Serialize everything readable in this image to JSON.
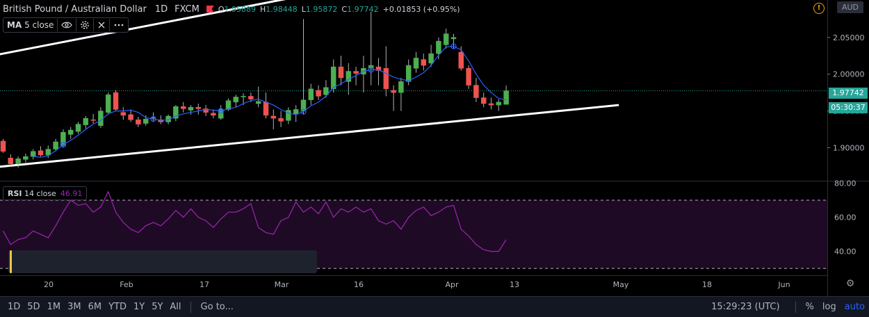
{
  "header": {
    "symbol": "British Pound / Australian Dollar",
    "timeframe": "1D",
    "source": "FXCM",
    "ohlc": {
      "o_label": "O",
      "o": "1.95889",
      "h_label": "H",
      "h": "1.98448",
      "l_label": "L",
      "l": "1.95872",
      "c_label": "C",
      "c": "1.97742",
      "change": "+0.01853 (+0.95%)"
    },
    "currency": "AUD",
    "warning_icon": "!"
  },
  "indicators": {
    "ma": {
      "name": "MA",
      "params": "5 close",
      "icons": [
        "eye-icon",
        "gear-icon",
        "close-icon",
        "more-icon"
      ]
    },
    "rsi": {
      "name": "RSI",
      "params": "14 close",
      "value": "46.91"
    }
  },
  "price_labels": {
    "last": "1.97742",
    "countdown": "05:30:37"
  },
  "bottom_toolbar": {
    "timeframes": [
      "1D",
      "5D",
      "1M",
      "3M",
      "6M",
      "YTD",
      "1Y",
      "5Y",
      "All"
    ],
    "goto": "Go to...",
    "clock": "15:29:23 (UTC)",
    "percent": "%",
    "log": "log",
    "auto": "auto"
  },
  "colors": {
    "up": "#26a69a",
    "up_fill": "#4caf50",
    "down": "#ef5350",
    "ma": "#2962ff",
    "rsi": "#9c27b0",
    "rsi_band": "#1e0a24",
    "trendline": "#ffffff",
    "background": "#000000"
  },
  "chart_data": [
    {
      "type": "candlestick",
      "x_ticks": [
        "20",
        "Feb",
        "17",
        "Mar",
        "16",
        "Apr",
        "13",
        "May",
        "18",
        "Jun"
      ],
      "y_ticks": [
        "1.90000",
        "1.95000",
        "2.00000",
        "2.05000"
      ],
      "ylim": [
        1.855,
        2.1
      ],
      "last_price": 1.97742,
      "candles": [
        [
          1.909,
          1.912,
          1.893,
          1.895
        ],
        [
          1.886,
          1.891,
          1.874,
          1.878
        ],
        [
          1.878,
          1.888,
          1.873,
          1.885
        ],
        [
          1.884,
          1.892,
          1.88,
          1.888
        ],
        [
          1.888,
          1.898,
          1.884,
          1.895
        ],
        [
          1.896,
          1.902,
          1.888,
          1.89
        ],
        [
          1.89,
          1.903,
          1.886,
          1.898
        ],
        [
          1.898,
          1.912,
          1.895,
          1.908
        ],
        [
          1.903,
          1.925,
          1.9,
          1.921
        ],
        [
          1.918,
          1.928,
          1.912,
          1.924
        ],
        [
          1.922,
          1.935,
          1.919,
          1.932
        ],
        [
          1.931,
          1.943,
          1.926,
          1.94
        ],
        [
          1.938,
          1.946,
          1.933,
          1.937
        ],
        [
          1.93,
          1.955,
          1.927,
          1.95
        ],
        [
          1.948,
          1.975,
          1.945,
          1.972
        ],
        [
          1.975,
          1.978,
          1.95,
          1.952
        ],
        [
          1.948,
          1.955,
          1.938,
          1.944
        ],
        [
          1.945,
          1.952,
          1.935,
          1.938
        ],
        [
          1.938,
          1.942,
          1.928,
          1.932
        ],
        [
          1.933,
          1.944,
          1.93,
          1.939
        ],
        [
          1.94,
          1.948,
          1.935,
          1.941
        ],
        [
          1.938,
          1.944,
          1.932,
          1.935
        ],
        [
          1.935,
          1.945,
          1.932,
          1.943
        ],
        [
          1.94,
          1.958,
          1.936,
          1.956
        ],
        [
          1.956,
          1.962,
          1.948,
          1.953
        ],
        [
          1.951,
          1.958,
          1.945,
          1.955
        ],
        [
          1.955,
          1.96,
          1.945,
          1.953
        ],
        [
          1.953,
          1.958,
          1.943,
          1.948
        ],
        [
          1.947,
          1.952,
          1.94,
          1.944
        ],
        [
          1.94,
          1.958,
          1.938,
          1.952
        ],
        [
          1.952,
          1.967,
          1.95,
          1.964
        ],
        [
          1.962,
          1.972,
          1.955,
          1.969
        ],
        [
          1.969,
          1.974,
          1.958,
          1.97
        ],
        [
          1.97,
          1.975,
          1.962,
          1.966
        ],
        [
          1.96,
          1.983,
          1.955,
          1.963
        ],
        [
          1.962,
          1.975,
          1.94,
          1.944
        ],
        [
          1.943,
          1.952,
          1.925,
          1.94
        ],
        [
          1.94,
          1.95,
          1.928,
          1.936
        ],
        [
          1.937,
          1.955,
          1.932,
          1.951
        ],
        [
          1.946,
          1.958,
          1.935,
          1.952
        ],
        [
          1.95,
          2.075,
          1.945,
          1.965
        ],
        [
          1.965,
          1.987,
          1.958,
          1.98
        ],
        [
          1.978,
          1.985,
          1.965,
          1.97
        ],
        [
          1.972,
          1.992,
          1.968,
          1.982
        ],
        [
          1.98,
          2.02,
          1.975,
          2.01
        ],
        [
          2.01,
          2.025,
          1.985,
          1.995
        ],
        [
          1.99,
          2.015,
          1.972,
          2.004
        ],
        [
          2.004,
          2.01,
          1.985,
          2.001
        ],
        [
          2.0,
          2.025,
          1.975,
          2.008
        ],
        [
          2.008,
          2.085,
          1.985,
          2.012
        ],
        [
          2.01,
          2.022,
          1.985,
          2.005
        ],
        [
          2.008,
          2.038,
          1.97,
          1.98
        ],
        [
          1.978,
          1.985,
          1.95,
          1.975
        ],
        [
          1.975,
          1.995,
          1.95,
          1.99
        ],
        [
          1.99,
          2.02,
          1.985,
          2.012
        ],
        [
          2.008,
          2.03,
          2.002,
          2.022
        ],
        [
          2.02,
          2.028,
          2.005,
          2.012
        ],
        [
          2.015,
          2.04,
          2.01,
          2.028
        ],
        [
          2.028,
          2.05,
          2.02,
          2.045
        ],
        [
          2.04,
          2.062,
          2.035,
          2.055
        ],
        [
          2.048,
          2.055,
          2.035,
          2.05
        ],
        [
          2.03,
          2.038,
          2.005,
          2.008
        ],
        [
          2.008,
          2.012,
          1.98,
          1.985
        ],
        [
          1.985,
          1.995,
          1.962,
          1.968
        ],
        [
          1.968,
          1.975,
          1.955,
          1.96
        ],
        [
          1.96,
          1.968,
          1.952,
          1.958
        ],
        [
          1.958,
          1.966,
          1.95,
          1.962
        ],
        [
          1.95889,
          1.98448,
          1.95872,
          1.97742
        ]
      ],
      "ma_5_close": [
        null,
        null,
        null,
        null,
        1.888,
        1.887,
        1.889,
        1.896,
        1.904,
        1.91,
        1.917,
        1.925,
        1.932,
        1.937,
        1.946,
        1.95,
        1.95,
        1.951,
        1.948,
        1.941,
        1.939,
        1.937,
        1.938,
        1.943,
        1.946,
        1.948,
        1.95,
        1.952,
        1.951,
        1.95,
        1.953,
        1.955,
        1.96,
        1.964,
        1.966,
        1.962,
        1.958,
        1.952,
        1.947,
        1.945,
        1.949,
        1.957,
        1.962,
        1.97,
        1.982,
        1.987,
        1.993,
        1.998,
        2.004,
        2.006,
        2.006,
        2.001,
        1.996,
        1.993,
        1.991,
        1.996,
        2.002,
        2.012,
        2.026,
        2.037,
        2.038,
        2.033,
        2.018,
        2.0,
        1.985,
        1.975,
        1.967,
        1.965
      ],
      "trendlines": [
        {
          "name": "upper",
          "from": [
            -1.5,
            2.025
          ],
          "to": [
            38.0,
            2.103
          ]
        },
        {
          "name": "lower",
          "from": [
            -1.5,
            1.873
          ],
          "to": [
            82.0,
            1.958
          ]
        }
      ]
    },
    {
      "type": "line",
      "title": "RSI 14 close",
      "y_ticks": [
        "40.00",
        "60.00",
        "80.00"
      ],
      "ylim": [
        26,
        81
      ],
      "bands": [
        30,
        70
      ],
      "values": [
        52,
        44,
        47,
        48,
        52,
        50,
        48,
        55,
        63,
        70,
        67,
        68,
        63,
        66,
        75,
        63,
        57,
        53,
        51,
        55,
        57,
        55,
        59,
        64,
        60,
        65,
        60,
        58,
        54,
        59,
        63,
        63,
        65,
        68,
        54,
        51,
        50,
        58,
        60,
        69,
        63,
        66,
        62,
        69,
        60,
        65,
        63,
        66,
        63,
        65,
        58,
        56,
        58,
        53,
        60,
        64,
        66,
        61,
        63,
        66,
        67,
        53,
        49,
        44,
        41,
        40,
        40,
        46.91
      ]
    }
  ]
}
